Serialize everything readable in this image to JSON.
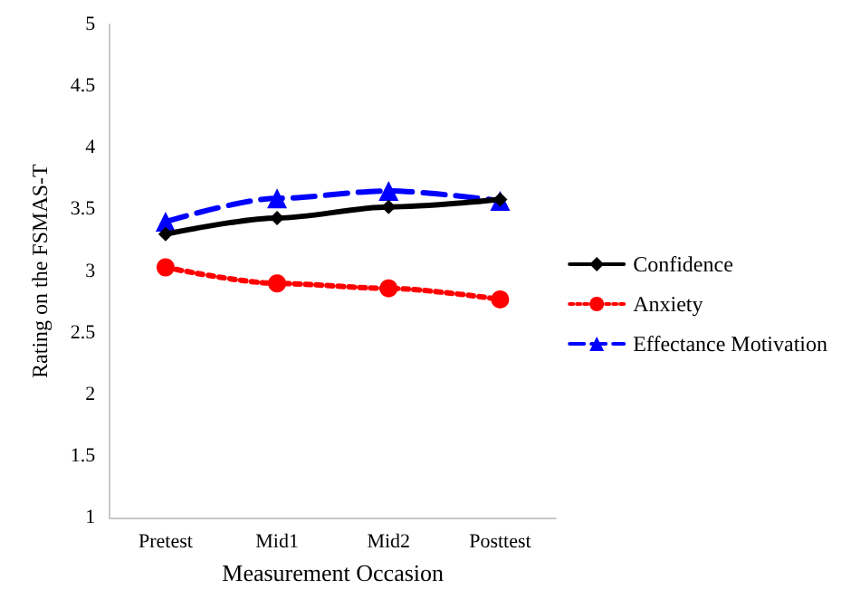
{
  "chart_data": {
    "type": "line",
    "xlabel": "Measurement Occasion",
    "ylabel": "Rating on the FSMAS-T",
    "categories": [
      "Pretest",
      "Mid1",
      "Mid2",
      "Posttest"
    ],
    "series": [
      {
        "name": "Confidence",
        "color": "#000000",
        "values": [
          3.3,
          3.43,
          3.52,
          3.58
        ],
        "marker": "diamond",
        "line_style": "solid"
      },
      {
        "name": "Anxiety",
        "color": "#ff0000",
        "values": [
          3.03,
          2.9,
          2.86,
          2.77
        ],
        "marker": "circle",
        "line_style": "dotted"
      },
      {
        "name": "Effectance Motivation",
        "color": "#0000ff",
        "values": [
          3.4,
          3.59,
          3.65,
          3.57
        ],
        "marker": "triangle",
        "line_style": "dashed"
      }
    ],
    "ylim": [
      1,
      5
    ],
    "yticks": [
      1,
      1.5,
      2,
      2.5,
      3,
      3.5,
      4,
      4.5,
      5
    ],
    "grid": false,
    "legend": "right"
  }
}
